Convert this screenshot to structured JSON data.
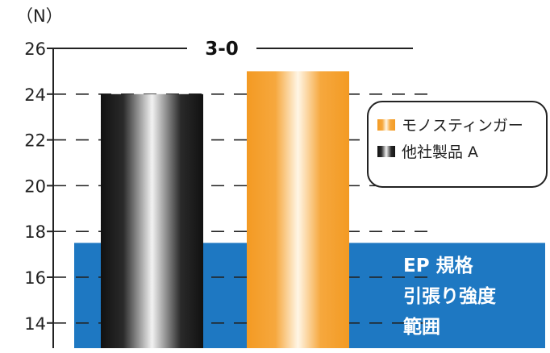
{
  "chart_data": {
    "type": "bar",
    "unit_label": "（N）",
    "yticks": [
      14,
      16,
      18,
      20,
      22,
      24,
      26
    ],
    "ylim": [
      12.9,
      26
    ],
    "grid": "dashed",
    "categories": [
      "他社製品 A",
      "モノスティンガー"
    ],
    "values": [
      24,
      25
    ],
    "bar_colors": [
      "#1a1a1a",
      "#f39a23"
    ],
    "title": "3-0",
    "band": {
      "from": 12.9,
      "to": 17.5,
      "color": "#1e78c2",
      "label_lines": [
        "EP 規格",
        "引張り強度",
        "範囲"
      ]
    },
    "legend": {
      "placement": "right",
      "items": [
        {
          "label": "モノスティンガー",
          "color": "#f39a23"
        },
        {
          "label": "他社製品 A",
          "color": "#1a1a1a"
        }
      ]
    }
  }
}
